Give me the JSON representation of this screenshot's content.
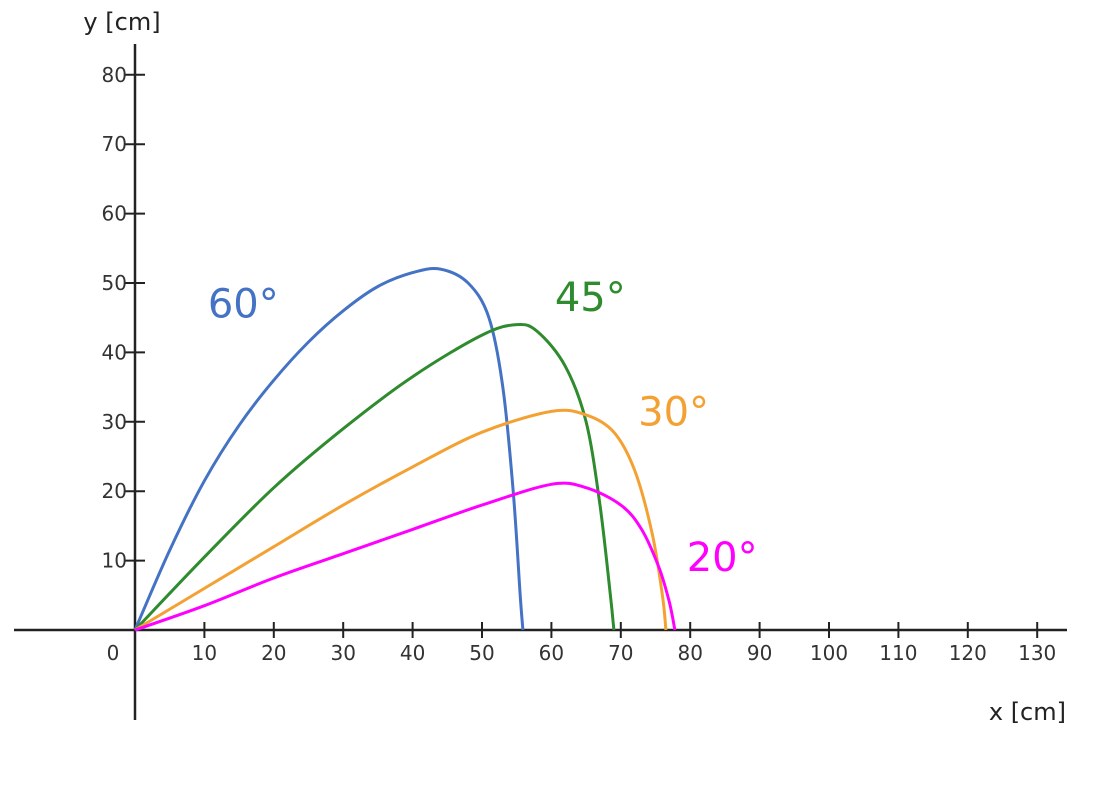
{
  "chart_data": {
    "type": "line",
    "xlabel": "x [cm]",
    "ylabel": "y [cm]",
    "xlim": [
      0,
      130
    ],
    "ylim": [
      0,
      80
    ],
    "x_ticks": [
      0,
      10,
      20,
      30,
      40,
      50,
      60,
      70,
      80,
      90,
      100,
      110,
      120,
      130
    ],
    "y_ticks": [
      10,
      20,
      30,
      40,
      50,
      60,
      70,
      80
    ],
    "grid": false,
    "legend": "none",
    "series": [
      {
        "name": "60°",
        "color": "#4472c4",
        "x": [
          0,
          5,
          10,
          15,
          20,
          25,
          30,
          35,
          40,
          44,
          48,
          51,
          53,
          54.5,
          55.5,
          55.9
        ],
        "y": [
          0,
          11.5,
          21.5,
          29.5,
          36,
          41.5,
          46,
          49.5,
          51.5,
          52,
          50,
          45,
          35,
          20,
          5,
          0
        ]
      },
      {
        "name": "45°",
        "color": "#2e8b2e",
        "x": [
          0,
          10,
          20,
          30,
          40,
          50,
          55,
          58,
          62,
          65,
          67,
          68.5,
          69
        ],
        "y": [
          0,
          10.5,
          20.5,
          29,
          36.5,
          42.5,
          44,
          43,
          38,
          30,
          18,
          5,
          0
        ]
      },
      {
        "name": "30°",
        "color": "#f4a133",
        "x": [
          0,
          10,
          20,
          30,
          40,
          50,
          60,
          65,
          69,
          72,
          74.5,
          76,
          76.5
        ],
        "y": [
          0,
          6,
          12,
          18,
          23.5,
          28.5,
          31.5,
          31,
          28.5,
          23,
          14,
          5,
          0
        ]
      },
      {
        "name": "20°",
        "color": "#ff00ff",
        "x": [
          0,
          10,
          20,
          30,
          40,
          50,
          60,
          65,
          70,
          73,
          75.5,
          77,
          77.8
        ],
        "y": [
          0,
          3.5,
          7.5,
          11,
          14.5,
          18,
          21,
          20.5,
          18,
          14.5,
          9,
          4,
          0
        ]
      }
    ],
    "annotations": [
      {
        "text": "60°",
        "color": "#4472c4",
        "x": 10.5,
        "y": 45
      },
      {
        "text": "45°",
        "color": "#2e8b2e",
        "x": 60.5,
        "y": 46
      },
      {
        "text": "30°",
        "color": "#f4a133",
        "x": 72.5,
        "y": 29.5
      },
      {
        "text": "20°",
        "color": "#ff00ff",
        "x": 79.5,
        "y": 8.5
      }
    ]
  }
}
